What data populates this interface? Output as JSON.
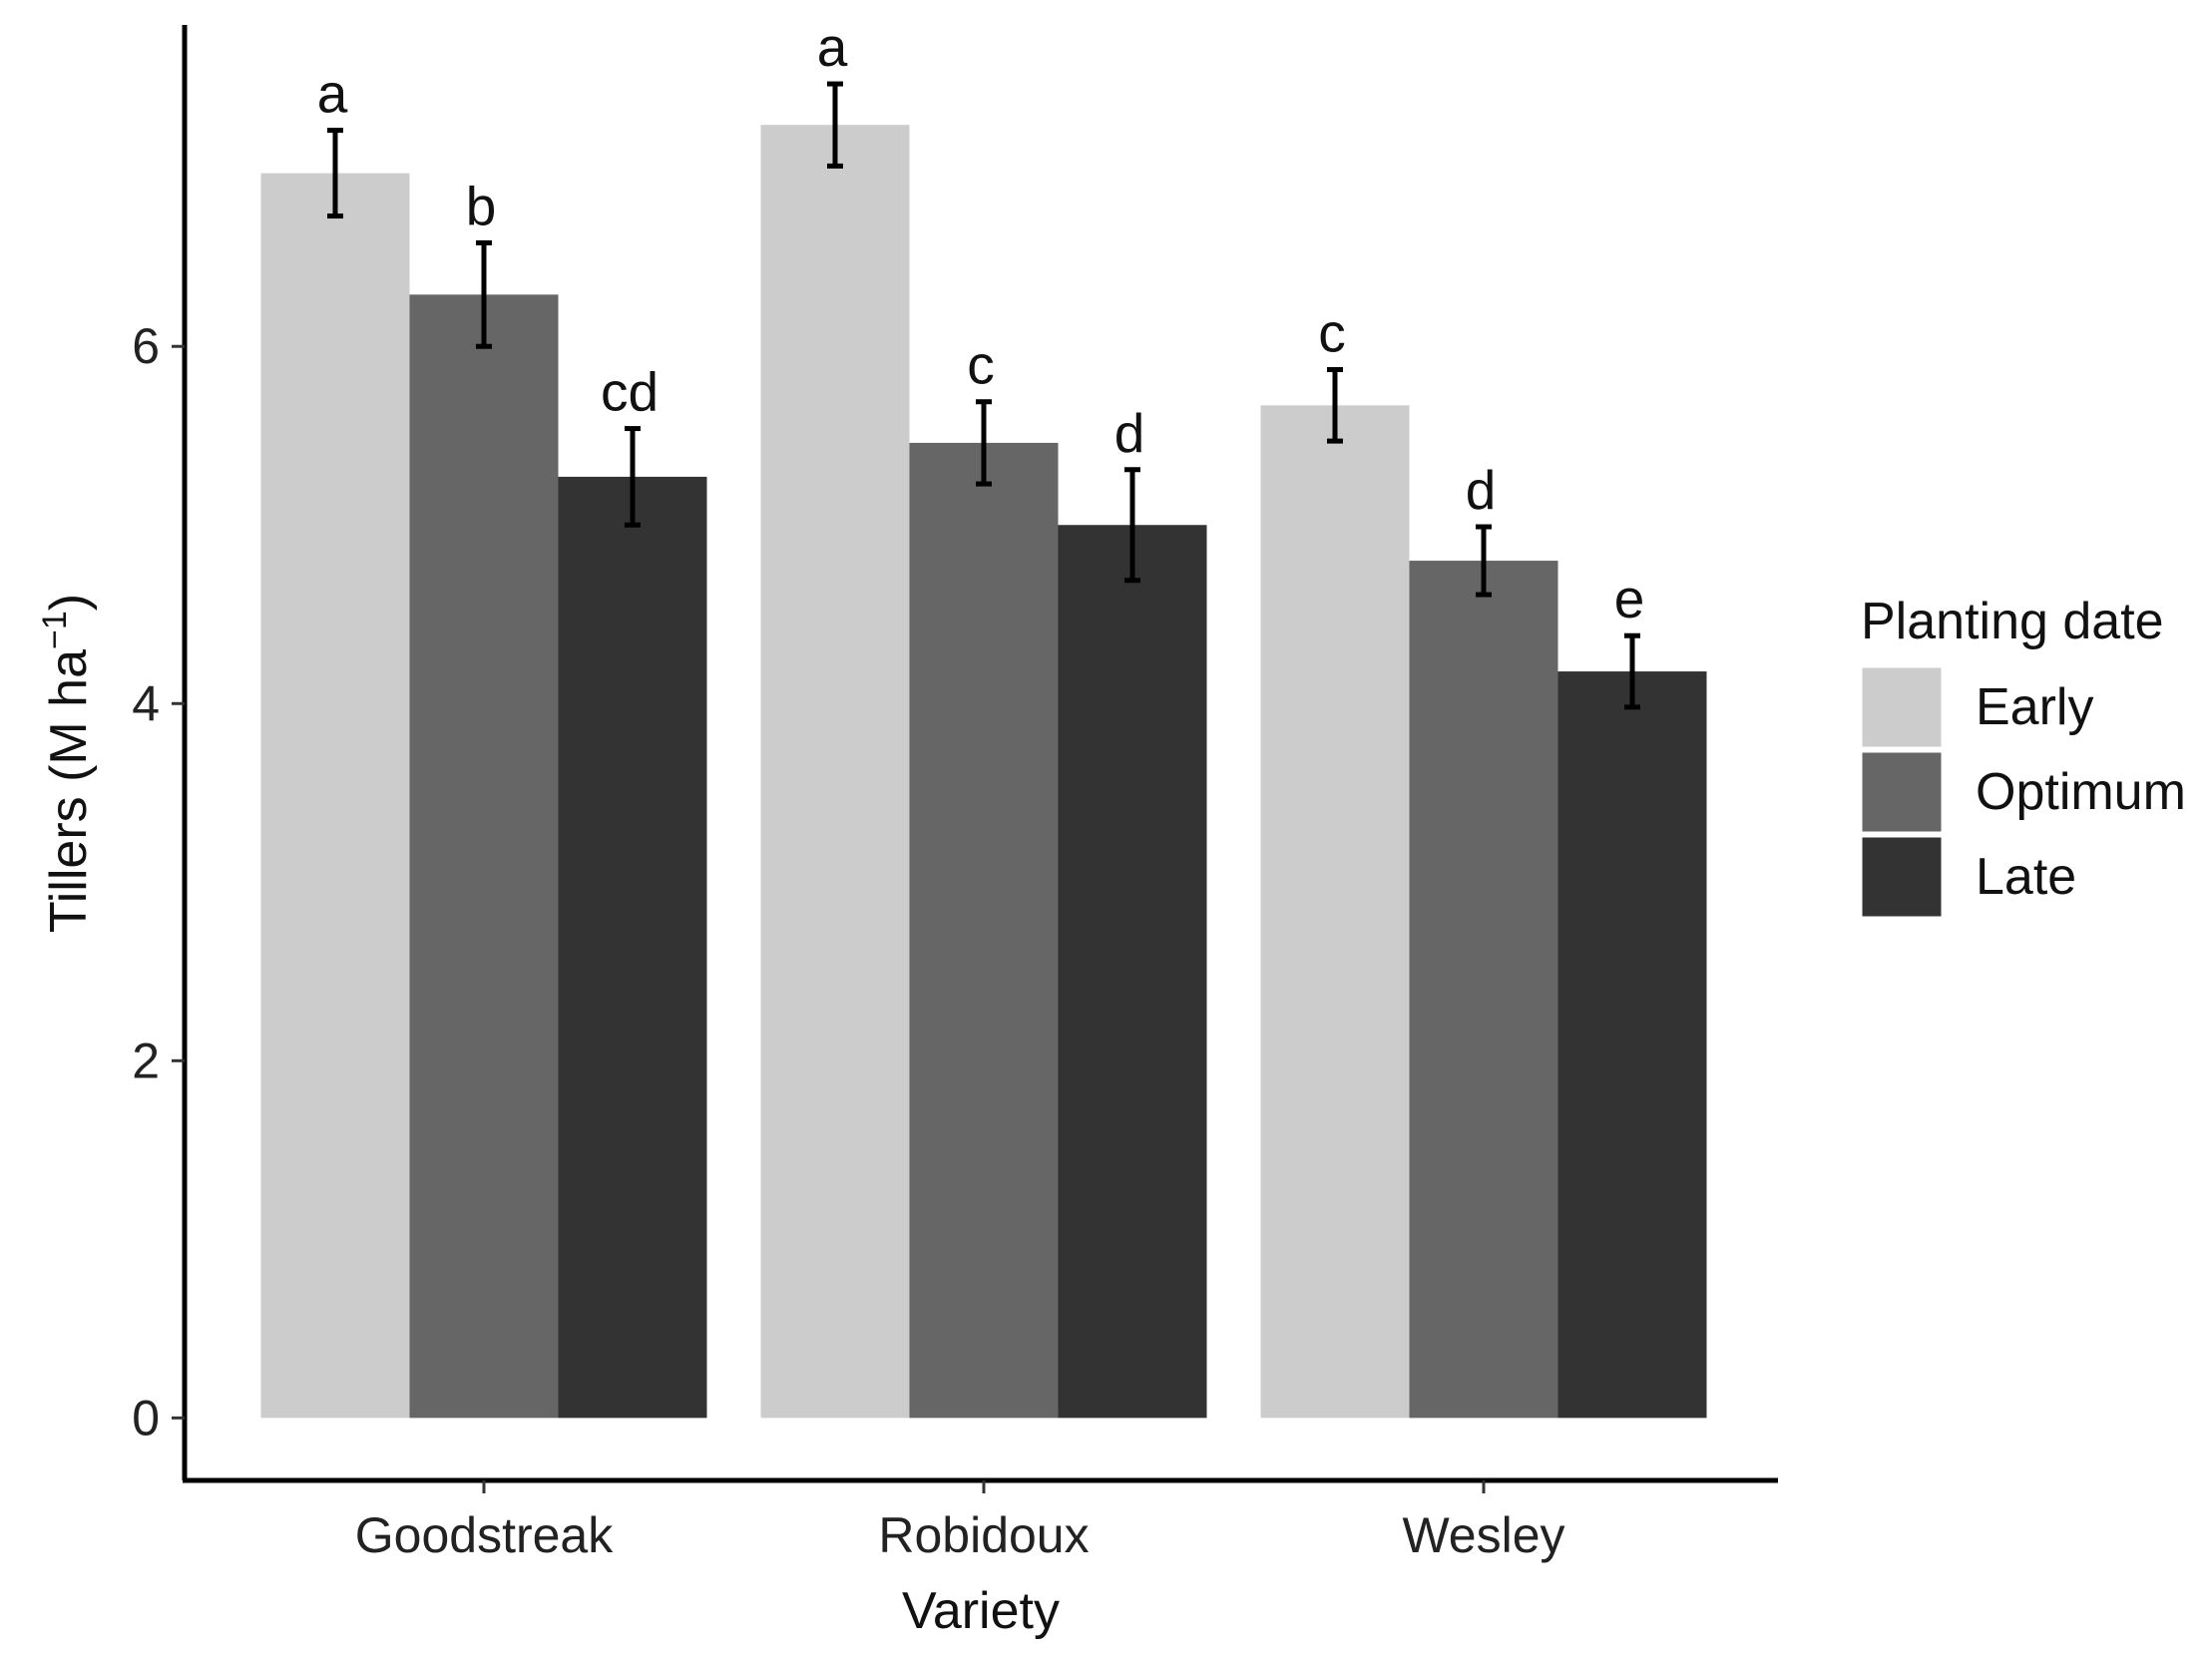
{
  "chart_data": {
    "type": "bar",
    "title": "",
    "xlabel": "Variety",
    "ylabel": {
      "main": "Tillers (M ha",
      "superscript": "−1",
      "close": ")"
    },
    "categories": [
      "Goodstreak",
      "Robidoux",
      "Wesley"
    ],
    "ylim": [
      -0.35,
      7.8
    ],
    "yticks": [
      0,
      2,
      4,
      6
    ],
    "grid": false,
    "legend": {
      "title": "Planting date",
      "position": "right"
    },
    "series": [
      {
        "name": "Early",
        "color": "#cccccc",
        "values": [
          6.97,
          7.24,
          5.67
        ],
        "errors": [
          0.24,
          0.23,
          0.2
        ],
        "letters": [
          "a",
          "a",
          "c"
        ]
      },
      {
        "name": "Optimum",
        "color": "#666666",
        "values": [
          6.29,
          5.46,
          4.8
        ],
        "errors": [
          0.29,
          0.23,
          0.19
        ],
        "letters": [
          "b",
          "c",
          "d"
        ]
      },
      {
        "name": "Late",
        "color": "#333333",
        "values": [
          5.27,
          5.0,
          4.18
        ],
        "errors": [
          0.27,
          0.31,
          0.2
        ],
        "letters": [
          "cd",
          "d",
          "e"
        ]
      }
    ]
  }
}
